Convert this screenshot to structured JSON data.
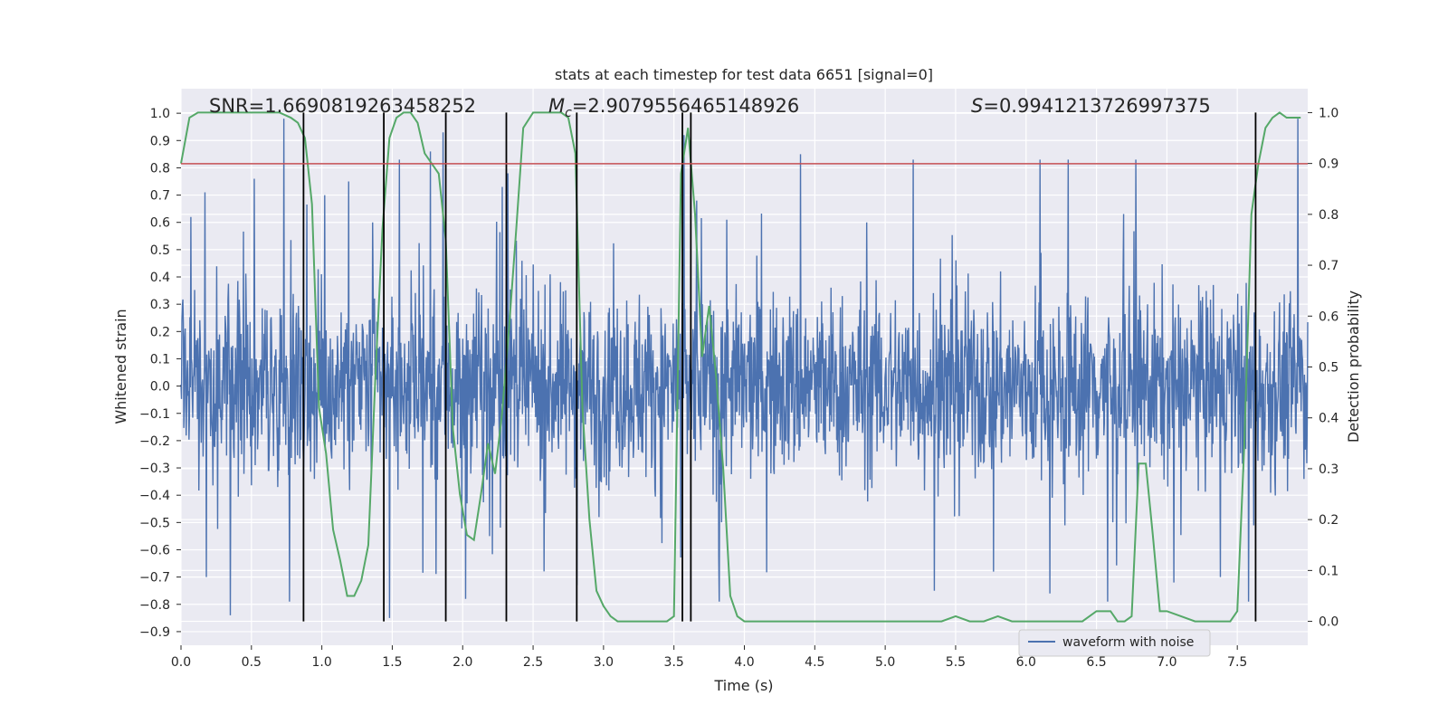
{
  "chart_data": {
    "type": "line",
    "title": "stats at each timestep for test data 6651 [signal=0]",
    "xlabel": "Time (s)",
    "ylabel": "Whitened strain",
    "y2label": "Detection probability",
    "xlim": [
      0.0,
      8.0
    ],
    "ylim": [
      -0.95,
      1.09
    ],
    "y2lim": [
      -0.047,
      1.047
    ],
    "xticks": [
      "0.0",
      "0.5",
      "1.0",
      "1.5",
      "2.0",
      "2.5",
      "3.0",
      "3.5",
      "4.0",
      "4.5",
      "5.0",
      "5.5",
      "6.0",
      "6.5",
      "7.0",
      "7.5"
    ],
    "yticks": [
      "1.0",
      "0.9",
      "0.8",
      "0.7",
      "0.6",
      "0.5",
      "0.4",
      "0.3",
      "0.2",
      "0.1",
      "0.0",
      "-0.1",
      "-0.2",
      "-0.3",
      "-0.4",
      "-0.5",
      "-0.6",
      "-0.7",
      "-0.8",
      "-0.9"
    ],
    "y2ticks": [
      "1.0",
      "0.9",
      "0.8",
      "0.7",
      "0.6",
      "0.5",
      "0.4",
      "0.3",
      "0.2",
      "0.1",
      "0.0"
    ],
    "grid": true,
    "legend": {
      "position": "lower-center-right",
      "entries": [
        "waveform with noise"
      ]
    },
    "annotations": {
      "snr": "SNR=1.6690819263458252",
      "mc_symbol": "M",
      "mc_sub": "c",
      "mc_value": "=2.9079556465148926",
      "s_symbol": "S",
      "s_value": "=0.9941213726997375"
    },
    "threshold_y": 0.815,
    "vlines_x": [
      0.87,
      1.44,
      1.88,
      2.31,
      2.81,
      3.56,
      3.62,
      7.63
    ],
    "series": [
      {
        "name": "waveform with noise",
        "axis": "left",
        "style": "noise",
        "amplitude_envelope": {
          "typical": 0.4,
          "peak_max": 0.98,
          "peak_min": -0.85
        },
        "peaks": [
          {
            "x": 0.07,
            "y": 0.62
          },
          {
            "x": 0.17,
            "y": 0.71
          },
          {
            "x": 0.18,
            "y": -0.7
          },
          {
            "x": 0.35,
            "y": -0.84
          },
          {
            "x": 0.52,
            "y": -0.62
          },
          {
            "x": 0.52,
            "y": 0.76
          },
          {
            "x": 0.73,
            "y": 0.98
          },
          {
            "x": 0.77,
            "y": 0.96
          },
          {
            "x": 0.77,
            "y": -0.79
          },
          {
            "x": 1.02,
            "y": 0.7
          },
          {
            "x": 1.19,
            "y": 0.75
          },
          {
            "x": 1.36,
            "y": 0.6
          },
          {
            "x": 1.48,
            "y": -0.85
          },
          {
            "x": 1.55,
            "y": 0.83
          },
          {
            "x": 1.77,
            "y": 0.86
          },
          {
            "x": 1.86,
            "y": 0.93
          },
          {
            "x": 2.02,
            "y": -0.78
          },
          {
            "x": 2.19,
            "y": -0.55
          },
          {
            "x": 2.28,
            "y": 0.73
          },
          {
            "x": 2.32,
            "y": 0.78
          },
          {
            "x": 2.81,
            "y": 0.84
          },
          {
            "x": 2.81,
            "y": -0.73
          },
          {
            "x": 3.57,
            "y": 0.92
          },
          {
            "x": 3.66,
            "y": 0.68
          },
          {
            "x": 3.82,
            "y": -0.79
          },
          {
            "x": 4.4,
            "y": 0.85
          },
          {
            "x": 4.87,
            "y": 0.6
          },
          {
            "x": 5.2,
            "y": 0.83
          },
          {
            "x": 5.35,
            "y": -0.75
          },
          {
            "x": 5.77,
            "y": -0.68
          },
          {
            "x": 6.1,
            "y": 0.83
          },
          {
            "x": 6.17,
            "y": -0.76
          },
          {
            "x": 6.3,
            "y": 0.83
          },
          {
            "x": 6.58,
            "y": -0.79
          },
          {
            "x": 6.78,
            "y": 0.83
          },
          {
            "x": 7.05,
            "y": -0.72
          },
          {
            "x": 7.38,
            "y": -0.7
          },
          {
            "x": 7.58,
            "y": -0.79
          },
          {
            "x": 7.93,
            "y": 0.98
          }
        ]
      },
      {
        "name": "",
        "axis": "right",
        "style": "line",
        "color": "#55a868",
        "x": [
          0.0,
          0.06,
          0.12,
          0.2,
          0.3,
          0.5,
          0.6,
          0.7,
          0.78,
          0.83,
          0.88,
          0.93,
          0.98,
          1.03,
          1.08,
          1.13,
          1.18,
          1.23,
          1.28,
          1.33,
          1.38,
          1.43,
          1.48,
          1.53,
          1.58,
          1.63,
          1.68,
          1.73,
          1.78,
          1.83,
          1.88,
          1.93,
          1.98,
          2.03,
          2.08,
          2.13,
          2.18,
          2.23,
          2.28,
          2.33,
          2.38,
          2.43,
          2.5,
          2.6,
          2.7,
          2.75,
          2.8,
          2.85,
          2.9,
          2.95,
          3.0,
          3.05,
          3.1,
          3.2,
          3.3,
          3.4,
          3.45,
          3.5,
          3.55,
          3.6,
          3.65,
          3.7,
          3.75,
          3.8,
          3.85,
          3.9,
          3.95,
          4.0,
          4.1,
          4.5,
          5.0,
          5.4,
          5.5,
          5.6,
          5.7,
          5.8,
          5.9,
          6.0,
          6.1,
          6.2,
          6.3,
          6.4,
          6.5,
          6.6,
          6.65,
          6.7,
          6.75,
          6.8,
          6.85,
          6.9,
          6.95,
          7.0,
          7.1,
          7.2,
          7.3,
          7.4,
          7.45,
          7.5,
          7.55,
          7.6,
          7.65,
          7.7,
          7.75,
          7.8,
          7.85,
          7.9,
          7.95
        ],
        "y": [
          0.9,
          0.99,
          1.0,
          1.0,
          1.0,
          1.0,
          1.0,
          1.0,
          0.99,
          0.98,
          0.95,
          0.82,
          0.42,
          0.33,
          0.18,
          0.12,
          0.05,
          0.05,
          0.08,
          0.15,
          0.48,
          0.77,
          0.95,
          0.99,
          1.0,
          1.0,
          0.98,
          0.92,
          0.9,
          0.88,
          0.75,
          0.38,
          0.25,
          0.17,
          0.16,
          0.25,
          0.35,
          0.29,
          0.41,
          0.58,
          0.77,
          0.97,
          1.0,
          1.0,
          1.0,
          0.99,
          0.92,
          0.42,
          0.2,
          0.06,
          0.03,
          0.01,
          0.0,
          0.0,
          0.0,
          0.0,
          0.0,
          0.01,
          0.88,
          0.97,
          0.8,
          0.52,
          0.62,
          0.48,
          0.3,
          0.05,
          0.01,
          0.0,
          0.0,
          0.0,
          0.0,
          0.0,
          0.01,
          0.0,
          0.0,
          0.01,
          0.0,
          0.0,
          0.0,
          0.0,
          0.0,
          0.0,
          0.02,
          0.02,
          0.0,
          0.0,
          0.01,
          0.31,
          0.31,
          0.17,
          0.02,
          0.02,
          0.01,
          0.0,
          0.0,
          0.0,
          0.0,
          0.02,
          0.35,
          0.8,
          0.9,
          0.97,
          0.99,
          1.0,
          0.99,
          0.99,
          0.99
        ]
      }
    ]
  }
}
